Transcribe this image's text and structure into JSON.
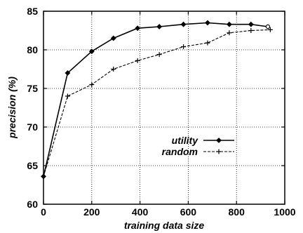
{
  "chart_data": {
    "type": "line",
    "xlabel": "training data size",
    "ylabel": "precision (%)",
    "xlim": [
      0,
      1000
    ],
    "ylim": [
      60,
      85
    ],
    "xticks": [
      "0",
      "200",
      "400",
      "600",
      "800",
      "1000"
    ],
    "yticks": [
      "60",
      "65",
      "70",
      "75",
      "80",
      "85"
    ],
    "grid": true,
    "legend_position": "center-right",
    "series": [
      {
        "name": "utility",
        "style": "solid",
        "marker": "diamond",
        "color": "#000000",
        "points": [
          [
            0,
            63.6
          ],
          [
            100,
            77.0
          ],
          [
            200,
            79.8
          ],
          [
            290,
            81.5
          ],
          [
            390,
            82.8
          ],
          [
            480,
            83.0
          ],
          [
            580,
            83.3
          ],
          [
            680,
            83.5
          ],
          [
            770,
            83.3
          ],
          [
            860,
            83.3
          ],
          [
            930,
            83.0
          ]
        ]
      },
      {
        "name": "random",
        "style": "dashed",
        "marker": "plus",
        "color": "#000000",
        "points": [
          [
            0,
            63.6
          ],
          [
            100,
            74.0
          ],
          [
            200,
            75.5
          ],
          [
            290,
            77.5
          ],
          [
            390,
            78.6
          ],
          [
            480,
            79.4
          ],
          [
            580,
            80.4
          ],
          [
            680,
            80.9
          ],
          [
            770,
            82.2
          ],
          [
            860,
            82.5
          ],
          [
            940,
            82.6
          ]
        ]
      }
    ]
  }
}
